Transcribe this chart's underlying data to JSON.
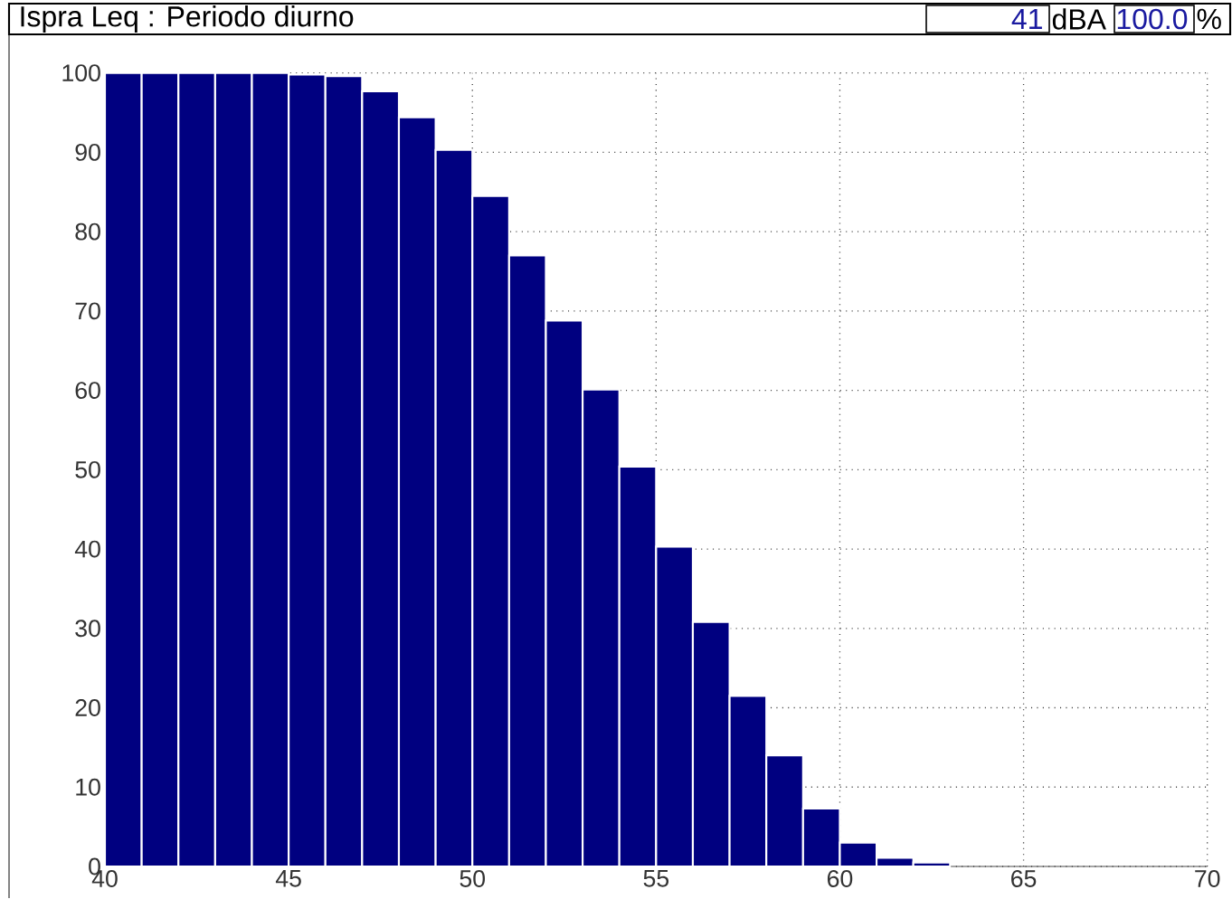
{
  "chart_data": {
    "type": "histogram",
    "title": "Ispra  Leq : Periodo diurno",
    "annotations": [
      "41",
      "dBA",
      "100.0",
      "%"
    ],
    "bins": [
      40,
      41,
      42,
      43,
      44,
      45,
      46,
      47,
      48,
      49,
      50,
      51,
      52,
      53,
      54,
      55,
      56,
      57,
      58,
      59,
      60,
      61,
      62,
      63
    ],
    "values": [
      100,
      100,
      100,
      100,
      100,
      99.8,
      99.6,
      97.7,
      94.4,
      90.3,
      84.5,
      77,
      68.8,
      60.1,
      50.4,
      40.3,
      30.8,
      21.5,
      14,
      7.3,
      3,
      1.1,
      0.5
    ],
    "color": "#000080",
    "xlim": [
      40,
      70
    ],
    "xticks": [
      40,
      45,
      50,
      55,
      60,
      65,
      70
    ],
    "ylim": [
      0,
      100
    ],
    "yticks": [
      0,
      10,
      20,
      30,
      40,
      50,
      60,
      70,
      80,
      90,
      100
    ],
    "grid": true
  }
}
